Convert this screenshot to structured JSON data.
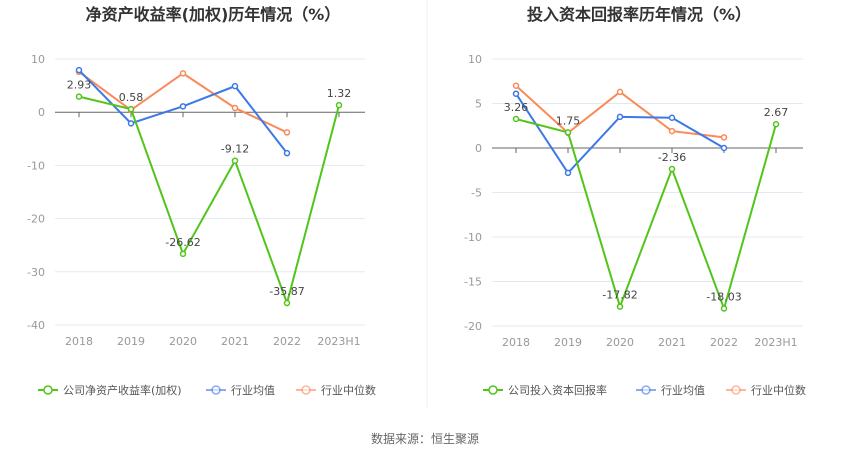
{
  "source": "数据来源：恒生聚源",
  "colors": {
    "company": "#52c41a",
    "mean": "#3c78e6",
    "median": "#fa8a5a"
  },
  "chart_data": [
    {
      "type": "line",
      "title": "净资产收益率(加权)历年情况（%）",
      "categories": [
        "2018",
        "2019",
        "2020",
        "2021",
        "2022",
        "2023H1"
      ],
      "ylim": [
        -40,
        10
      ],
      "yticks": [
        10,
        0,
        -10,
        -20,
        -30,
        -40
      ],
      "series": [
        {
          "name": "公司净资产收益率(加权)",
          "key": "company",
          "values": [
            2.93,
            0.58,
            -26.62,
            -9.12,
            -35.87,
            1.32
          ],
          "labels": true
        },
        {
          "name": "行业均值",
          "key": "mean",
          "values": [
            7.9,
            -2.1,
            1.1,
            4.9,
            -7.7,
            null
          ]
        },
        {
          "name": "行业中位数",
          "key": "median",
          "values": [
            7.6,
            0.4,
            7.3,
            0.8,
            -3.8,
            null
          ]
        }
      ],
      "legend": "bottom"
    },
    {
      "type": "line",
      "title": "投入资本回报率历年情况（%）",
      "categories": [
        "2018",
        "2019",
        "2020",
        "2021",
        "2022",
        "2023H1"
      ],
      "ylim": [
        -20,
        10
      ],
      "yticks": [
        10,
        5,
        0,
        -5,
        -10,
        -15,
        -20
      ],
      "series": [
        {
          "name": "公司投入资本回报率",
          "key": "company",
          "values": [
            3.26,
            1.75,
            -17.82,
            -2.36,
            -18.03,
            2.67
          ],
          "labels": true
        },
        {
          "name": "行业均值",
          "key": "mean",
          "values": [
            6.1,
            -2.8,
            3.5,
            3.4,
            0.0,
            null
          ]
        },
        {
          "name": "行业中位数",
          "key": "median",
          "values": [
            7.0,
            1.7,
            6.3,
            1.9,
            1.2,
            null
          ]
        }
      ],
      "legend": "bottom"
    }
  ]
}
